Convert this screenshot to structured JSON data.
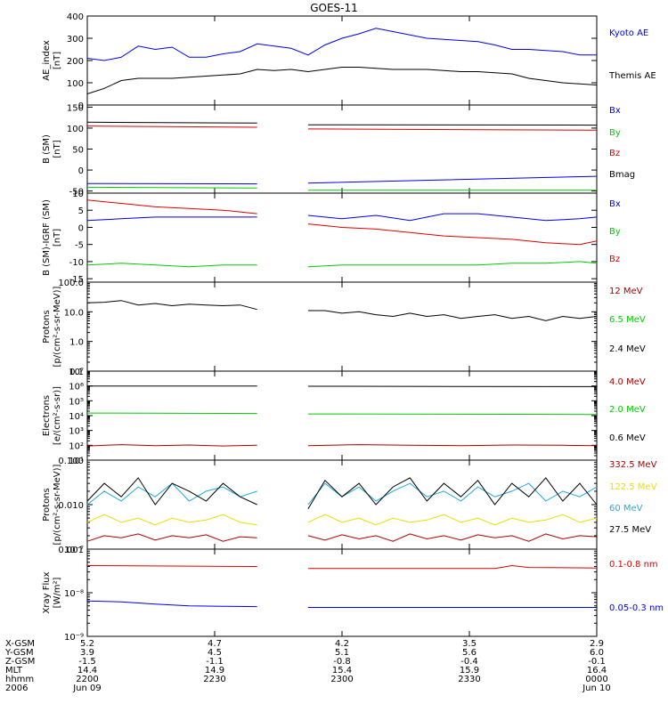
{
  "title": "GOES-11",
  "colors": {
    "black": "#000000",
    "blue": "#0000ee",
    "green": "#00cc00",
    "red": "#dd0000",
    "darkred": "#aa0000",
    "yellow": "#eedd00",
    "cyan": "#22aadd"
  },
  "chart_data": [
    {
      "type": "line",
      "id": "ae",
      "ylabel": [
        "AE_index",
        "[nT]"
      ],
      "yscale": "linear",
      "ylim": [
        0,
        400
      ],
      "ticks": [
        "400",
        "300",
        "200",
        "100",
        "0"
      ],
      "tickvals": [
        400,
        300,
        200,
        100,
        0
      ],
      "series": [
        {
          "name": "Kyoto AE",
          "color": "blue",
          "x": [
            0,
            2,
            4,
            6,
            8,
            10,
            12,
            14,
            16,
            18,
            20,
            22,
            24,
            26,
            28,
            30,
            32,
            34,
            36,
            38,
            40,
            42,
            44,
            46,
            48,
            50,
            52,
            54,
            56,
            58,
            60
          ],
          "values": [
            210,
            200,
            215,
            265,
            250,
            260,
            215,
            215,
            230,
            240,
            275,
            265,
            255,
            225,
            270,
            300,
            320,
            345,
            330,
            315,
            300,
            295,
            290,
            285,
            270,
            250,
            250,
            245,
            240,
            225,
            225
          ]
        },
        {
          "name": "Themis AE",
          "color": "black",
          "x": [
            0,
            2,
            4,
            6,
            8,
            10,
            12,
            14,
            16,
            18,
            20,
            22,
            24,
            26,
            28,
            30,
            32,
            34,
            36,
            38,
            40,
            42,
            44,
            46,
            48,
            50,
            52,
            54,
            56,
            58,
            60
          ],
          "values": [
            50,
            75,
            110,
            120,
            120,
            120,
            125,
            130,
            135,
            140,
            160,
            155,
            160,
            150,
            160,
            170,
            170,
            165,
            160,
            160,
            160,
            155,
            150,
            150,
            145,
            140,
            120,
            110,
            100,
            95,
            90
          ]
        }
      ]
    },
    {
      "type": "line",
      "id": "bsm",
      "ylabel": [
        "B (SM)",
        "[nT]"
      ],
      "yscale": "linear",
      "ylim": [
        -55,
        155
      ],
      "ticks": [
        "150",
        "100",
        "50",
        "0",
        "-50"
      ],
      "tickvals": [
        150,
        100,
        50,
        0,
        -50
      ],
      "gap": [
        20,
        26
      ],
      "series": [
        {
          "name": "Bx",
          "color": "blue",
          "x": [
            0,
            20,
            26,
            60
          ],
          "values": [
            -32,
            -33,
            -31,
            -15
          ]
        },
        {
          "name": "By",
          "color": "green",
          "x": [
            0,
            20,
            26,
            60
          ],
          "values": [
            -41,
            -43,
            -48,
            -48
          ]
        },
        {
          "name": "Bz",
          "color": "red",
          "x": [
            0,
            20,
            26,
            60
          ],
          "values": [
            105,
            102,
            98,
            95
          ]
        },
        {
          "name": "Bmag",
          "color": "black",
          "x": [
            0,
            20,
            26,
            60
          ],
          "values": [
            114,
            112,
            108,
            107
          ]
        }
      ]
    },
    {
      "type": "line",
      "id": "bigrf",
      "ylabel": [
        "B (SM)-IGRF (SM)",
        "[nT]"
      ],
      "yscale": "linear",
      "ylim": [
        -16,
        10
      ],
      "ticks": [
        "10",
        "5",
        "0",
        "-5",
        "-10",
        "-15"
      ],
      "tickvals": [
        10,
        5,
        0,
        -5,
        -10,
        -15
      ],
      "gap": [
        20,
        26
      ],
      "series": [
        {
          "name": "Bx",
          "color": "blue",
          "x": [
            0,
            4,
            8,
            12,
            16,
            20,
            26,
            30,
            34,
            38,
            42,
            46,
            50,
            54,
            58,
            60
          ],
          "values": [
            2,
            2.5,
            3,
            3,
            3,
            3,
            3.5,
            2.5,
            3.5,
            2,
            4,
            4,
            3,
            2,
            2.5,
            3
          ]
        },
        {
          "name": "By",
          "color": "green",
          "x": [
            0,
            4,
            8,
            12,
            16,
            20,
            26,
            30,
            34,
            38,
            42,
            46,
            50,
            54,
            58,
            60
          ],
          "values": [
            -11,
            -10.5,
            -11,
            -11.5,
            -11,
            -11,
            -11.5,
            -11,
            -11,
            -11,
            -11,
            -11,
            -10.5,
            -10.5,
            -10,
            -10.5
          ]
        },
        {
          "name": "Bz",
          "color": "red",
          "x": [
            0,
            4,
            8,
            12,
            16,
            20,
            26,
            30,
            34,
            38,
            42,
            46,
            50,
            54,
            58,
            60
          ],
          "values": [
            8,
            7,
            6,
            5.5,
            5,
            4,
            1,
            0,
            -0.5,
            -1.5,
            -2.5,
            -3,
            -3.5,
            -4.5,
            -5,
            -4
          ]
        }
      ]
    },
    {
      "type": "line",
      "id": "p1",
      "ylabel": [
        "Protons",
        "[p/(cm²-s-sr-MeV)]"
      ],
      "yscale": "log",
      "ylim": [
        0.1,
        100
      ],
      "ticks": [
        "100.0",
        "10.0",
        "1.0",
        "0.1"
      ],
      "tickvals": [
        100,
        10,
        1,
        0.1
      ],
      "gap": [
        20,
        26
      ],
      "series": [
        {
          "name": "12 MeV",
          "color": "darkred",
          "x": [],
          "values": []
        },
        {
          "name": "6.5 MeV",
          "color": "green",
          "x": [],
          "values": []
        },
        {
          "name": "2.4 MeV",
          "color": "black",
          "x": [
            0,
            2,
            4,
            6,
            8,
            10,
            12,
            14,
            16,
            18,
            20,
            26,
            28,
            30,
            32,
            34,
            36,
            38,
            40,
            42,
            44,
            46,
            48,
            50,
            52,
            54,
            56,
            58,
            60
          ],
          "values": [
            20,
            21,
            24,
            17,
            19,
            16,
            18,
            17,
            16,
            17,
            12,
            11,
            11,
            9,
            10,
            8,
            7,
            9,
            7,
            8,
            6,
            7,
            8,
            6,
            7,
            5,
            7,
            6,
            7
          ]
        }
      ]
    },
    {
      "type": "line",
      "id": "e",
      "ylabel": [
        "Electrons",
        "[e/(cm²-s-sr)]"
      ],
      "yscale": "log",
      "ylim": [
        10,
        10000000
      ],
      "ticks": [
        "10⁷",
        "10⁶",
        "10⁵",
        "10⁴",
        "10³",
        "10²",
        "10¹"
      ],
      "tickvals": [
        10000000,
        1000000,
        100000,
        10000,
        1000,
        100,
        10
      ],
      "gap": [
        20,
        26
      ],
      "series": [
        {
          "name": "4.0 MeV",
          "color": "darkred",
          "x": [
            0,
            4,
            8,
            12,
            16,
            20,
            26,
            32,
            38,
            44,
            50,
            56,
            60
          ],
          "values": [
            90,
            110,
            95,
            105,
            90,
            100,
            95,
            110,
            100,
            95,
            105,
            100,
            95
          ]
        },
        {
          "name": "2.0 MeV",
          "color": "green",
          "x": [
            0,
            20,
            26,
            60
          ],
          "values": [
            15000,
            14000,
            13000,
            12000
          ]
        },
        {
          "name": "0.6 MeV",
          "color": "black",
          "x": [
            0,
            20,
            26,
            60
          ],
          "values": [
            1000000,
            1000000,
            950000,
            900000
          ]
        }
      ]
    },
    {
      "type": "line",
      "id": "p2",
      "ylabel": [
        "Protons",
        "[p/(cm²-s-sr-MeV)]"
      ],
      "yscale": "log",
      "ylim": [
        0.001,
        0.1
      ],
      "ticks": [
        "0.100",
        "0.010",
        "0.001"
      ],
      "tickvals": [
        0.1,
        0.01,
        0.001
      ],
      "gap": [
        20,
        26
      ],
      "series": [
        {
          "name": "332.5 MeV",
          "color": "darkred",
          "x": [
            0,
            2,
            4,
            6,
            8,
            10,
            12,
            14,
            16,
            18,
            20,
            26,
            28,
            30,
            32,
            34,
            36,
            38,
            40,
            42,
            44,
            46,
            48,
            50,
            52,
            54,
            56,
            58,
            60
          ],
          "values": [
            0.0015,
            0.002,
            0.0018,
            0.0022,
            0.0016,
            0.002,
            0.0018,
            0.0021,
            0.0015,
            0.0019,
            0.0018,
            0.002,
            0.0016,
            0.0021,
            0.0017,
            0.002,
            0.0015,
            0.0022,
            0.0017,
            0.002,
            0.0016,
            0.0021,
            0.0018,
            0.002,
            0.0015,
            0.0022,
            0.0017,
            0.002,
            0.0019
          ]
        },
        {
          "name": "122.5 MeV",
          "color": "yellow",
          "x": [
            0,
            2,
            4,
            6,
            8,
            10,
            12,
            14,
            16,
            18,
            20,
            26,
            28,
            30,
            32,
            34,
            36,
            38,
            40,
            42,
            44,
            46,
            48,
            50,
            52,
            54,
            56,
            58,
            60
          ],
          "values": [
            0.004,
            0.006,
            0.004,
            0.005,
            0.0035,
            0.005,
            0.004,
            0.0045,
            0.006,
            0.004,
            0.0035,
            0.004,
            0.006,
            0.004,
            0.005,
            0.0035,
            0.005,
            0.004,
            0.0045,
            0.006,
            0.004,
            0.005,
            0.0035,
            0.005,
            0.004,
            0.0045,
            0.006,
            0.004,
            0.005
          ]
        },
        {
          "name": "60 MeV",
          "color": "cyan",
          "x": [
            0,
            2,
            4,
            6,
            8,
            10,
            12,
            14,
            16,
            18,
            20,
            26,
            28,
            30,
            32,
            34,
            36,
            38,
            40,
            42,
            44,
            46,
            48,
            50,
            52,
            54,
            56,
            58,
            60
          ],
          "values": [
            0.01,
            0.02,
            0.012,
            0.025,
            0.015,
            0.03,
            0.012,
            0.02,
            0.025,
            0.015,
            0.02,
            0.01,
            0.03,
            0.015,
            0.025,
            0.012,
            0.02,
            0.03,
            0.015,
            0.02,
            0.012,
            0.025,
            0.015,
            0.02,
            0.03,
            0.012,
            0.02,
            0.015,
            0.025
          ]
        },
        {
          "name": "27.5 MeV",
          "color": "black",
          "x": [
            0,
            2,
            4,
            6,
            8,
            10,
            12,
            14,
            16,
            18,
            20,
            26,
            28,
            30,
            32,
            34,
            36,
            38,
            40,
            42,
            44,
            46,
            48,
            50,
            52,
            54,
            56,
            58,
            60
          ],
          "values": [
            0.012,
            0.03,
            0.015,
            0.04,
            0.01,
            0.03,
            0.02,
            0.012,
            0.03,
            0.015,
            0.01,
            0.008,
            0.035,
            0.015,
            0.03,
            0.01,
            0.025,
            0.04,
            0.012,
            0.03,
            0.015,
            0.035,
            0.01,
            0.03,
            0.015,
            0.04,
            0.012,
            0.03,
            0.01
          ]
        }
      ]
    },
    {
      "type": "line",
      "id": "xray",
      "ylabel": [
        "Xray Flux",
        "[W/m²]"
      ],
      "yscale": "log",
      "ylim": [
        1e-09,
        1e-07
      ],
      "ticks": [
        "10⁻⁷",
        "10⁻⁸",
        "10⁻⁹"
      ],
      "tickvals": [
        1e-07,
        1e-08,
        1e-09
      ],
      "gap": [
        20,
        26
      ],
      "series": [
        {
          "name": "0.1-0.8 nm",
          "color": "red",
          "x": [
            0,
            20,
            26,
            48,
            50,
            52,
            60
          ],
          "values": [
            4.2e-08,
            4e-08,
            3.6e-08,
            3.6e-08,
            4.2e-08,
            3.8e-08,
            3.7e-08
          ]
        },
        {
          "name": "0.05-0.3 nm",
          "color": "blue",
          "x": [
            0,
            4,
            8,
            12,
            16,
            20,
            26,
            60
          ],
          "values": [
            6.5e-09,
            6.2e-09,
            5.5e-09,
            5e-09,
            4.9e-09,
            4.8e-09,
            4.6e-09,
            4.6e-09
          ]
        }
      ]
    }
  ],
  "ephemeris": {
    "rows": [
      "X-GSM",
      "Y-GSM",
      "Z-GSM",
      "MLT",
      "hhmm",
      "2006"
    ],
    "columns": [
      {
        "x": 0,
        "values": [
          "5.2",
          "3.9",
          "-1.5",
          "14.4",
          "2200",
          "Jun 09"
        ]
      },
      {
        "x": 15,
        "values": [
          "4.7",
          "4.5",
          "-1.1",
          "14.9",
          "2230",
          ""
        ]
      },
      {
        "x": 30,
        "values": [
          "4.2",
          "5.1",
          "-0.8",
          "15.4",
          "2300",
          ""
        ]
      },
      {
        "x": 45,
        "values": [
          "3.5",
          "5.6",
          "-0.4",
          "15.9",
          "2330",
          ""
        ]
      },
      {
        "x": 60,
        "values": [
          "2.9",
          "6.0",
          "-0.1",
          "16.4",
          "0000",
          "Jun 10"
        ]
      }
    ]
  }
}
